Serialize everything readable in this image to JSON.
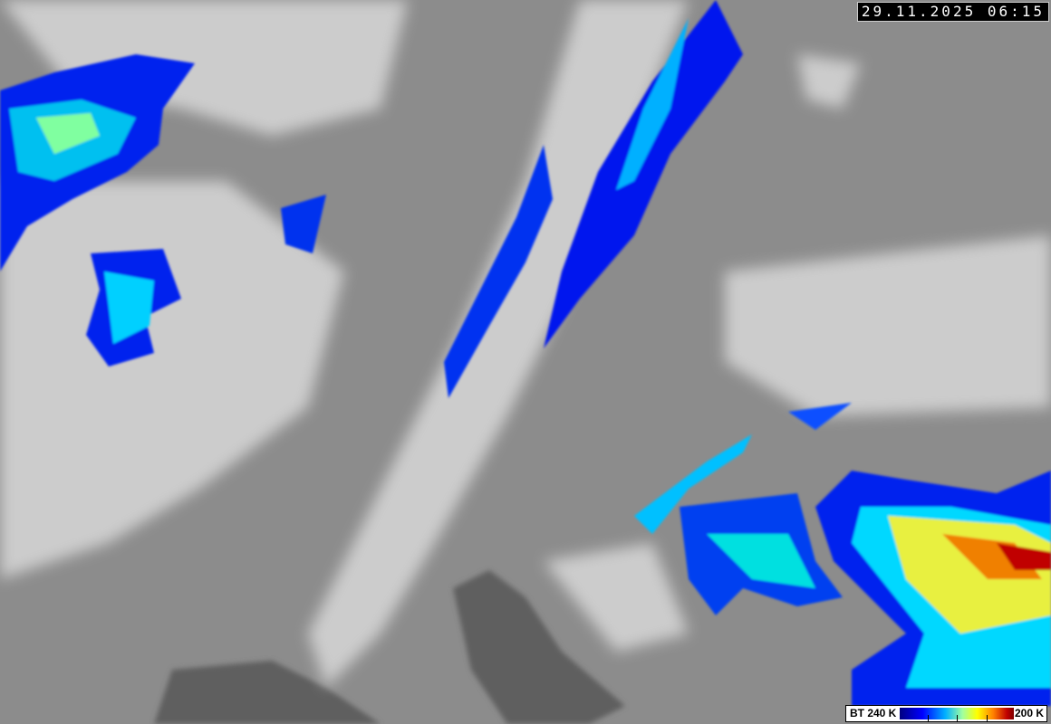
{
  "overlay": {
    "timestamp": "29.11.2025 06:15"
  },
  "legend": {
    "low_label": "BT 240 K",
    "high_label": "200 K",
    "colors": [
      "#000080",
      "#0000ff",
      "#00b0ff",
      "#a0ffa0",
      "#ffff00",
      "#ff8000",
      "#c00000"
    ]
  }
}
